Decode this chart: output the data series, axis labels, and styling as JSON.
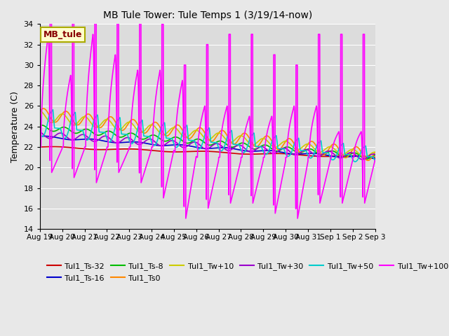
{
  "title": "MB Tule Tower: Tule Temps 1 (3/19/14-now)",
  "ylabel": "Temperature (C)",
  "ylim": [
    14,
    34
  ],
  "yticks": [
    14,
    16,
    18,
    20,
    22,
    24,
    26,
    28,
    30,
    32,
    34
  ],
  "bg_color": "#dcdcdc",
  "grid_color": "#ffffff",
  "legend_box_color": "#ffffcc",
  "legend_box_edge": "#aaaa00",
  "annotation_text": "MB_tule",
  "annotation_color": "#880000",
  "fig_bg_color": "#e8e8e8",
  "series": [
    {
      "label": "Tul1_Ts-32",
      "color": "#cc0000",
      "lw": 1.2
    },
    {
      "label": "Tul1_Ts-16",
      "color": "#0000cc",
      "lw": 1.2
    },
    {
      "label": "Tul1_Ts-8",
      "color": "#00bb00",
      "lw": 1.2
    },
    {
      "label": "Tul1_Ts0",
      "color": "#ff8800",
      "lw": 1.2
    },
    {
      "label": "Tul1_Tw+10",
      "color": "#cccc00",
      "lw": 1.2
    },
    {
      "label": "Tul1_Tw+30",
      "color": "#9900cc",
      "lw": 1.2
    },
    {
      "label": "Tul1_Tw+50",
      "color": "#00cccc",
      "lw": 1.2
    },
    {
      "label": "Tul1_Tw+100",
      "color": "#ff00ff",
      "lw": 1.2
    }
  ],
  "day_labels": [
    "Aug 19",
    "Aug 20",
    "Aug 21",
    "Aug 22",
    "Aug 23",
    "Aug 24",
    "Aug 25",
    "Aug 26",
    "Aug 27",
    "Aug 28",
    "Aug 29",
    "Aug 30",
    "Aug 31",
    "Sep 1",
    "Sep 2",
    "Sep 3"
  ]
}
